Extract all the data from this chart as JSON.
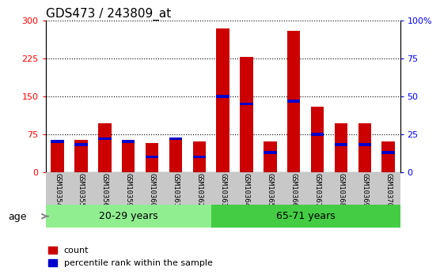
{
  "title": "GDS473 / 243809_at",
  "samples": [
    "GSM10354",
    "GSM10355",
    "GSM10356",
    "GSM10359",
    "GSM10360",
    "GSM10361",
    "GSM10362",
    "GSM10363",
    "GSM10364",
    "GSM10365",
    "GSM10366",
    "GSM10367",
    "GSM10368",
    "GSM10369",
    "GSM10370"
  ],
  "count_values": [
    63,
    63,
    97,
    60,
    57,
    63,
    60,
    285,
    228,
    60,
    280,
    130,
    97,
    97,
    60
  ],
  "percentile_values": [
    20,
    18,
    22,
    20,
    10,
    22,
    10,
    50,
    45,
    13,
    47,
    25,
    18,
    18,
    13
  ],
  "groups": [
    {
      "label": "20-29 years",
      "indices": [
        0,
        1,
        2,
        3,
        4,
        5,
        6
      ],
      "color": "#90ee90"
    },
    {
      "label": "65-71 years",
      "indices": [
        7,
        8,
        9,
        10,
        11,
        12,
        13,
        14
      ],
      "color": "#44cc44"
    }
  ],
  "ylim_left": [
    0,
    300
  ],
  "ylim_right": [
    0,
    100
  ],
  "yticks_left": [
    0,
    75,
    150,
    225,
    300
  ],
  "yticks_right": [
    0,
    25,
    50,
    75,
    100
  ],
  "bar_color_count": "#cc0000",
  "bar_color_percentile": "#0000cc",
  "bar_width": 0.55,
  "tick_label_area_color": "#c8c8c8",
  "age_label": "age",
  "legend_count": "count",
  "legend_percentile": "percentile rank within the sample",
  "title_fontsize": 11,
  "tick_fontsize": 8,
  "blue_bar_thickness": 6
}
